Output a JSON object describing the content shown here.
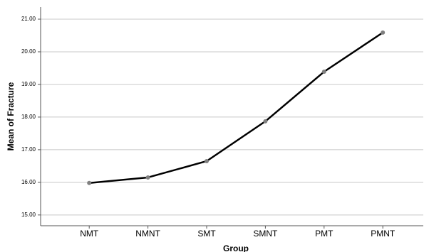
{
  "chart_data": {
    "type": "line",
    "x_label": "Group",
    "y_label": "Mean of Fracture",
    "categories": [
      "NMT",
      "NMNT",
      "SMT",
      "SMNT",
      "PMT",
      "PMNT"
    ],
    "values": [
      15.98,
      16.15,
      16.65,
      17.87,
      19.39,
      20.59
    ],
    "color": "#000000",
    "marker_color": "#7f7f7f",
    "ylim": [
      14.67,
      21.37
    ],
    "yticks": [
      {
        "value": 15,
        "label": "15.00"
      },
      {
        "value": 16,
        "label": "16.00"
      },
      {
        "value": 17,
        "label": "17.00"
      },
      {
        "value": 18,
        "label": "18.00"
      },
      {
        "value": 19,
        "label": "19.00"
      },
      {
        "value": 20,
        "label": "20.00"
      },
      {
        "value": 21,
        "label": "21.00"
      }
    ],
    "grid": true
  }
}
